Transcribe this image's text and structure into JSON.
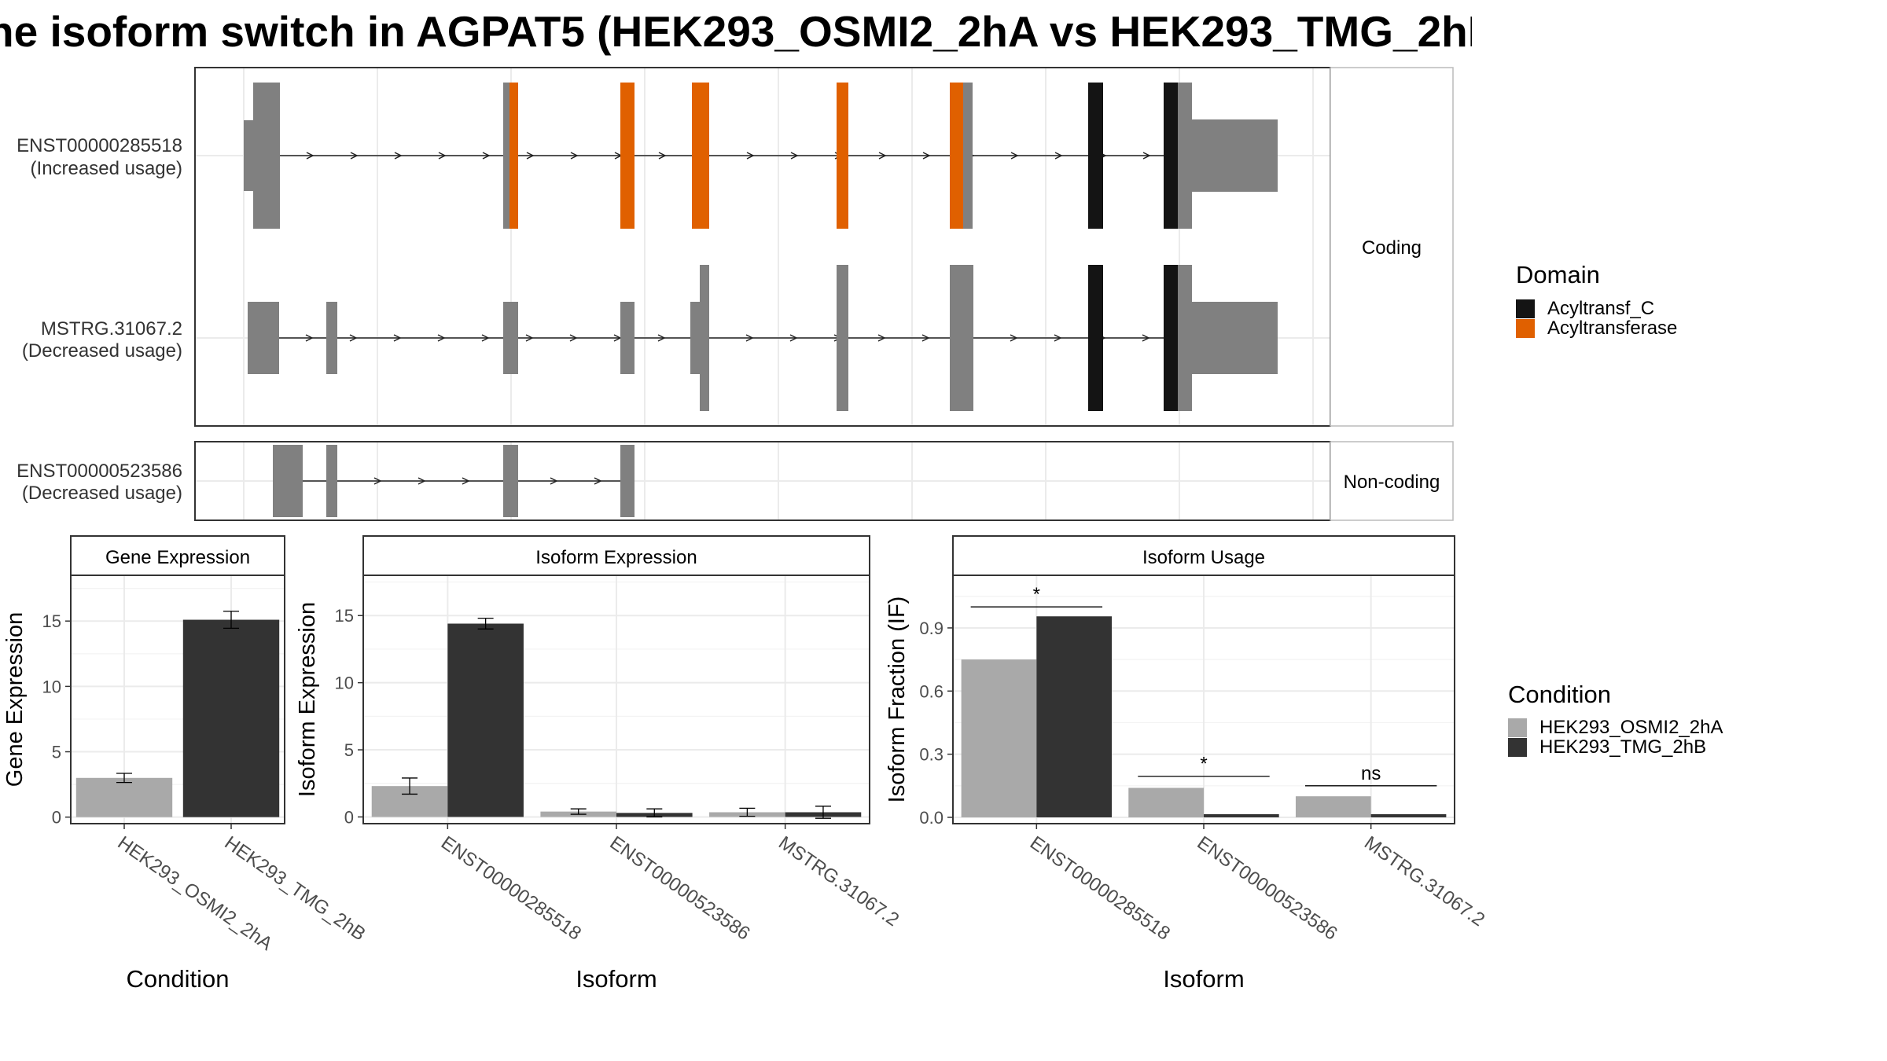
{
  "title": "he isoform switch in AGPAT5 (HEK293_OSMI2_2hA vs HEK293_TMG_2hB",
  "colors": {
    "exon": "#808080",
    "acyltransf_c": "#141414",
    "acyltransferase": "#e06000",
    "condition_a": "#a9a9a9",
    "condition_b": "#333333",
    "panel_border": "#333333",
    "strip_bg": "#ffffff",
    "grid": "#ebebeb"
  },
  "structure": {
    "facets": {
      "coding": "Coding",
      "noncoding": "Non-coding"
    },
    "isoforms": [
      {
        "id": "ENST00000285518",
        "note": "(Increased usage)"
      },
      {
        "id": "MSTRG.31067.2",
        "note": "(Decreased usage)"
      },
      {
        "id": "ENST00000523586",
        "note": "(Decreased usage)"
      }
    ],
    "legend": {
      "title": "Domain",
      "items": [
        {
          "label": "Acyltransf_C",
          "color": "#141414"
        },
        {
          "label": "Acyltransferase",
          "color": "#e06000"
        }
      ]
    }
  },
  "chart_data": [
    {
      "type": "bar",
      "title": "Gene Expression",
      "xlabel": "Condition",
      "ylabel": "Gene Expression",
      "ylim": [
        -0.5,
        18.5
      ],
      "yticks": [
        "0",
        "5",
        "10",
        "15"
      ],
      "categories": [
        "HEK293_OSMI2_2hA",
        "HEK293_TMG_2hB"
      ],
      "series": [
        {
          "name": "HEK293_OSMI2_2hA",
          "values": [
            3.0,
            null
          ],
          "errors": [
            0.35,
            null
          ]
        },
        {
          "name": "HEK293_TMG_2hB",
          "values": [
            null,
            15.1
          ],
          "errors": [
            null,
            0.65
          ]
        }
      ]
    },
    {
      "type": "bar",
      "title": "Isoform Expression",
      "xlabel": "Isoform",
      "ylabel": "Isoform Expression",
      "ylim": [
        -0.5,
        18.0
      ],
      "yticks": [
        "0",
        "5",
        "10",
        "15"
      ],
      "categories": [
        "ENST00000285518",
        "ENST00000523586",
        "MSTRG.31067.2"
      ],
      "series": [
        {
          "name": "HEK293_OSMI2_2hA",
          "values": [
            2.3,
            0.4,
            0.35
          ],
          "errors": [
            0.6,
            0.2,
            0.3
          ]
        },
        {
          "name": "HEK293_TMG_2hB",
          "values": [
            14.4,
            0.3,
            0.35
          ],
          "errors": [
            0.4,
            0.3,
            0.45
          ]
        }
      ]
    },
    {
      "type": "bar",
      "title": "Isoform Usage",
      "xlabel": "Isoform",
      "ylabel": "Isoform Fraction (IF)",
      "ylim": [
        -0.03,
        1.15
      ],
      "yticks": [
        "0.0",
        "0.3",
        "0.6",
        "0.9"
      ],
      "categories": [
        "ENST00000285518",
        "ENST00000523586",
        "MSTRG.31067.2"
      ],
      "series": [
        {
          "name": "HEK293_OSMI2_2hA",
          "values": [
            0.75,
            0.14,
            0.1
          ]
        },
        {
          "name": "HEK293_TMG_2hB",
          "values": [
            0.955,
            0.015,
            0.015
          ]
        }
      ],
      "significance": [
        "*",
        "*",
        "ns"
      ],
      "significance_height": [
        1.0,
        0.195,
        0.15
      ]
    }
  ],
  "condition_legend": {
    "title": "Condition",
    "items": [
      {
        "label": "HEK293_OSMI2_2hA",
        "color": "#a9a9a9"
      },
      {
        "label": "HEK293_TMG_2hB",
        "color": "#333333"
      }
    ]
  }
}
